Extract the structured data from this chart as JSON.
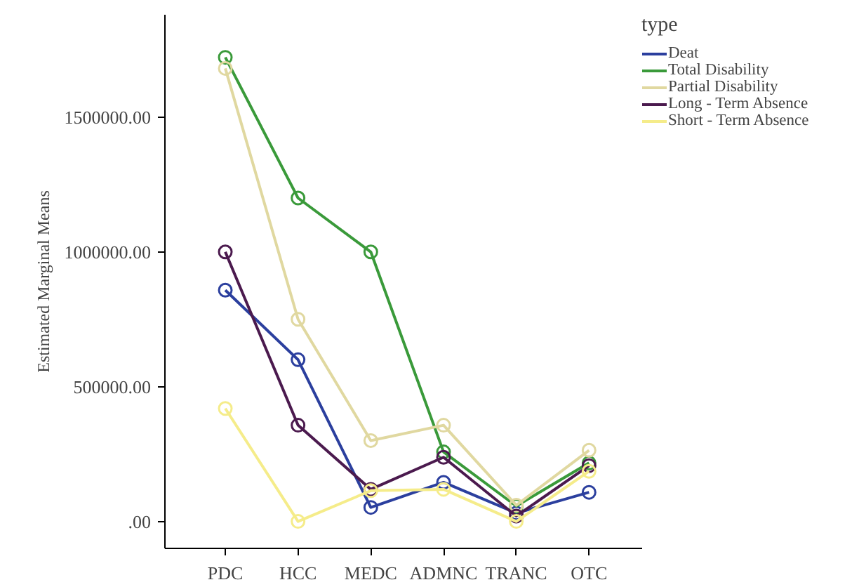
{
  "chart_data": {
    "type": "line",
    "ylabel": "Estimated Marginal Means",
    "legend_title": "type",
    "categories": [
      "PDC",
      "HCC",
      "MEDC",
      "ADMNC",
      "TRANC",
      "OTC"
    ],
    "series": [
      {
        "name": "Deat",
        "color": "#2b3f9e",
        "values": [
          858000,
          600000,
          52000,
          145000,
          31000,
          108000
        ]
      },
      {
        "name": "Total Disability",
        "color": "#3a9a3a",
        "values": [
          1722000,
          1200000,
          1000000,
          258000,
          57000,
          217000
        ]
      },
      {
        "name": "Partial Disability",
        "color": "#e0d8a0",
        "values": [
          1681000,
          750000,
          300000,
          357000,
          60000,
          264000
        ]
      },
      {
        "name": "Long - Term Absence",
        "color": "#4b1a4e",
        "values": [
          1000000,
          357000,
          119000,
          238000,
          20000,
          207000
        ]
      },
      {
        "name": "Short - Term Absence",
        "color": "#f5ec8a",
        "values": [
          419000,
          0,
          114000,
          119000,
          0,
          186000
        ]
      }
    ],
    "ylim": [
      -100000,
      1880000
    ],
    "yticks": [
      {
        "value": 0,
        "label": ".00"
      },
      {
        "value": 500000,
        "label": "500000.00"
      },
      {
        "value": 1000000,
        "label": "1000000.00"
      },
      {
        "value": 1500000,
        "label": "1500000.00"
      }
    ],
    "grid": false,
    "legend": "right",
    "marker": "circle",
    "line_style": "solid"
  }
}
